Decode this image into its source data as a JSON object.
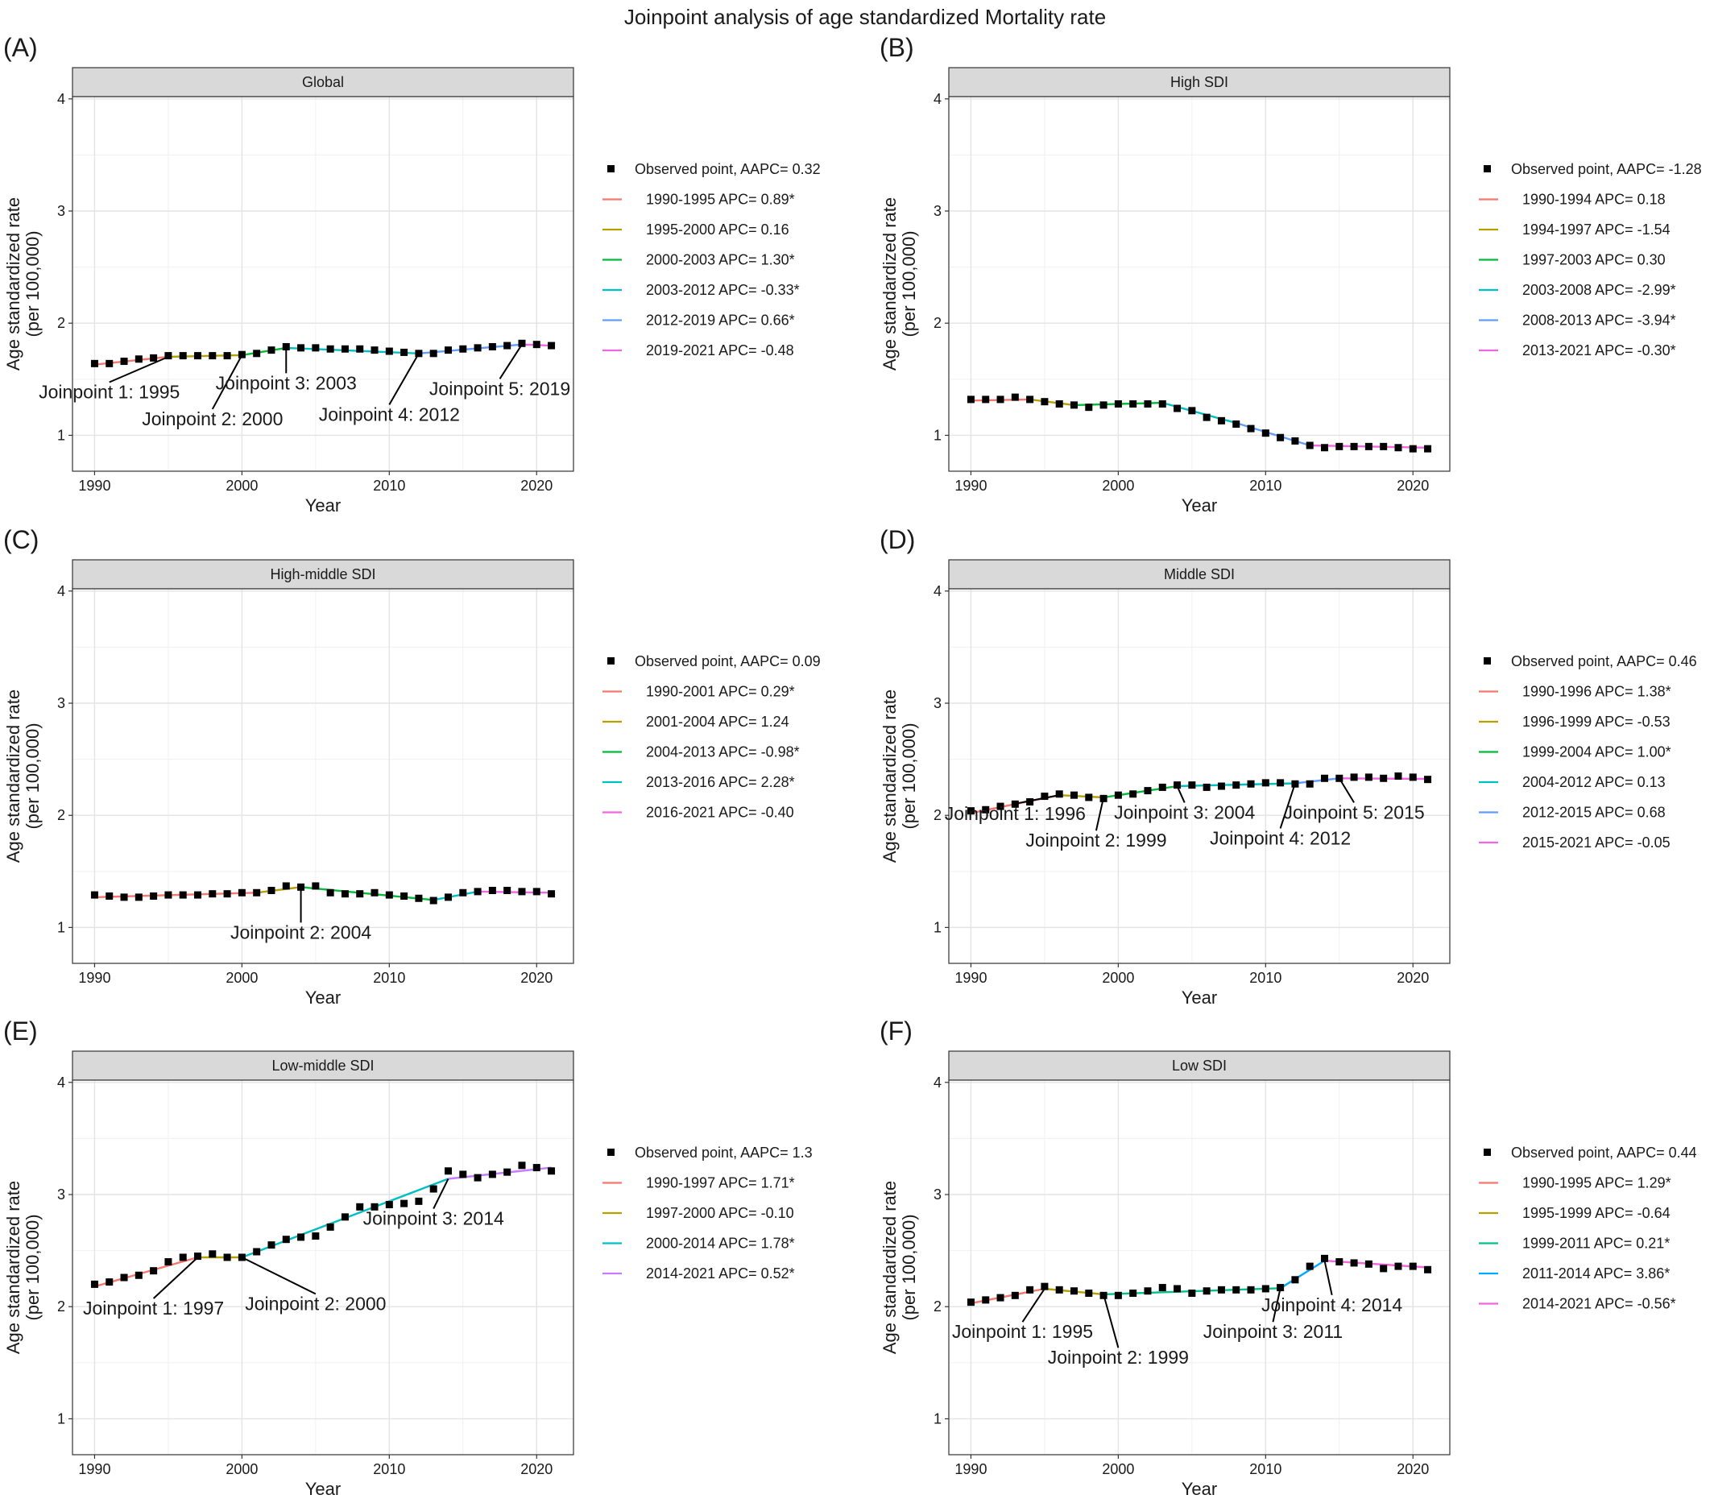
{
  "title": "Joinpoint analysis of age standardized Mortality rate",
  "axes": {
    "xlabel": "Year",
    "ylabel_line1": "Age standardized rate",
    "ylabel_line2": "(per 100,000)",
    "xticks": [
      1990,
      2000,
      2010,
      2020
    ],
    "yticks": [
      1,
      2,
      3,
      4
    ],
    "xlim": [
      1988.5,
      2022.5
    ],
    "ylim": [
      0.68,
      4.02
    ]
  },
  "colors": {
    "segments": [
      "#F8766D",
      "#B79F00",
      "#00BA38",
      "#00BFC4",
      "#619CFF",
      "#F564E3"
    ],
    "observed": "#000000",
    "strip_bg": "#d9d9d9"
  },
  "chart_data": [
    {
      "type": "line",
      "panel_label": "(A)",
      "strip": "Global",
      "observed_legend": "Observed point, AAPC= 0.32",
      "x": [
        1990,
        1991,
        1992,
        1993,
        1994,
        1995,
        1996,
        1997,
        1998,
        1999,
        2000,
        2001,
        2002,
        2003,
        2004,
        2005,
        2006,
        2007,
        2008,
        2009,
        2010,
        2011,
        2012,
        2013,
        2014,
        2015,
        2016,
        2017,
        2018,
        2019,
        2020,
        2021
      ],
      "observed": [
        1.64,
        1.64,
        1.66,
        1.68,
        1.69,
        1.71,
        1.71,
        1.71,
        1.71,
        1.71,
        1.72,
        1.73,
        1.76,
        1.79,
        1.78,
        1.78,
        1.77,
        1.77,
        1.77,
        1.76,
        1.75,
        1.74,
        1.73,
        1.73,
        1.76,
        1.77,
        1.78,
        1.79,
        1.8,
        1.82,
        1.81,
        1.8
      ],
      "segments": [
        {
          "label": "1990-1995 APC= 0.89*",
          "color": "#F8766D",
          "points": [
            [
              1990,
              1.63
            ],
            [
              1995,
              1.7
            ]
          ]
        },
        {
          "label": "1995-2000 APC= 0.16",
          "color": "#B79F00",
          "points": [
            [
              1995,
              1.7
            ],
            [
              2000,
              1.715
            ]
          ]
        },
        {
          "label": "2000-2003 APC= 1.30*",
          "color": "#00BA38",
          "points": [
            [
              2000,
              1.715
            ],
            [
              2003,
              1.78
            ]
          ]
        },
        {
          "label": "2003-2012 APC= -0.33*",
          "color": "#00BFC4",
          "points": [
            [
              2003,
              1.78
            ],
            [
              2012,
              1.73
            ]
          ]
        },
        {
          "label": "2012-2019 APC= 0.66*",
          "color": "#619CFF",
          "points": [
            [
              2012,
              1.73
            ],
            [
              2019,
              1.81
            ]
          ]
        },
        {
          "label": "2019-2021 APC= -0.48",
          "color": "#F564E3",
          "points": [
            [
              2019,
              1.81
            ],
            [
              2021,
              1.8
            ]
          ]
        }
      ],
      "joinpoints": [
        {
          "text": "Joinpoint 1: 1995",
          "x": 1995,
          "y": 1.7,
          "tx": 1991.0,
          "ty": 1.33
        },
        {
          "text": "Joinpoint 2: 2000",
          "x": 2000,
          "y": 1.715,
          "tx": 1998.0,
          "ty": 1.09
        },
        {
          "text": "Joinpoint 3: 2003",
          "x": 2003,
          "y": 1.78,
          "tx": 2003.0,
          "ty": 1.41
        },
        {
          "text": "Joinpoint 4: 2012",
          "x": 2012,
          "y": 1.73,
          "tx": 2010.0,
          "ty": 1.13
        },
        {
          "text": "Joinpoint 5: 2019",
          "x": 2019,
          "y": 1.81,
          "tx": 2017.5,
          "ty": 1.36
        }
      ]
    },
    {
      "type": "line",
      "panel_label": "(B)",
      "strip": "High SDI",
      "observed_legend": "Observed point, AAPC= -1.28",
      "x": [
        1990,
        1991,
        1992,
        1993,
        1994,
        1995,
        1996,
        1997,
        1998,
        1999,
        2000,
        2001,
        2002,
        2003,
        2004,
        2005,
        2006,
        2007,
        2008,
        2009,
        2010,
        2011,
        2012,
        2013,
        2014,
        2015,
        2016,
        2017,
        2018,
        2019,
        2020,
        2021
      ],
      "observed": [
        1.32,
        1.32,
        1.32,
        1.34,
        1.32,
        1.3,
        1.28,
        1.27,
        1.25,
        1.27,
        1.28,
        1.28,
        1.28,
        1.28,
        1.24,
        1.22,
        1.16,
        1.13,
        1.1,
        1.06,
        1.02,
        0.98,
        0.95,
        0.91,
        0.89,
        0.9,
        0.9,
        0.9,
        0.9,
        0.89,
        0.88,
        0.88
      ],
      "segments": [
        {
          "label": "1990-1994 APC= 0.18",
          "color": "#F8766D",
          "points": [
            [
              1990,
              1.31
            ],
            [
              1994,
              1.32
            ]
          ]
        },
        {
          "label": "1994-1997 APC= -1.54",
          "color": "#B79F00",
          "points": [
            [
              1994,
              1.32
            ],
            [
              1997,
              1.27
            ]
          ]
        },
        {
          "label": "1997-2003 APC= 0.30",
          "color": "#00BA38",
          "points": [
            [
              1997,
              1.27
            ],
            [
              2003,
              1.29
            ]
          ]
        },
        {
          "label": "2003-2008 APC= -2.99*",
          "color": "#00BFC4",
          "points": [
            [
              2003,
              1.29
            ],
            [
              2008,
              1.11
            ]
          ]
        },
        {
          "label": "2008-2013 APC= -3.94*",
          "color": "#619CFF",
          "points": [
            [
              2008,
              1.11
            ],
            [
              2013,
              0.91
            ]
          ]
        },
        {
          "label": "2013-2021 APC= -0.30*",
          "color": "#F564E3",
          "points": [
            [
              2013,
              0.91
            ],
            [
              2021,
              0.89
            ]
          ]
        }
      ],
      "joinpoints": []
    },
    {
      "type": "line",
      "panel_label": "(C)",
      "strip": "High-middle SDI",
      "observed_legend": "Observed point, AAPC= 0.09",
      "x": [
        1990,
        1991,
        1992,
        1993,
        1994,
        1995,
        1996,
        1997,
        1998,
        1999,
        2000,
        2001,
        2002,
        2003,
        2004,
        2005,
        2006,
        2007,
        2008,
        2009,
        2010,
        2011,
        2012,
        2013,
        2014,
        2015,
        2016,
        2017,
        2018,
        2019,
        2020,
        2021
      ],
      "observed": [
        1.29,
        1.28,
        1.27,
        1.27,
        1.28,
        1.29,
        1.29,
        1.29,
        1.3,
        1.3,
        1.31,
        1.31,
        1.33,
        1.37,
        1.36,
        1.37,
        1.31,
        1.3,
        1.3,
        1.31,
        1.29,
        1.28,
        1.26,
        1.24,
        1.27,
        1.31,
        1.32,
        1.33,
        1.33,
        1.32,
        1.32,
        1.3
      ],
      "segments": [
        {
          "label": "1990-2001 APC= 0.29*",
          "color": "#F8766D",
          "points": [
            [
              1990,
              1.27
            ],
            [
              2001,
              1.31
            ]
          ]
        },
        {
          "label": "2001-2004 APC= 1.24",
          "color": "#B79F00",
          "points": [
            [
              2001,
              1.31
            ],
            [
              2004,
              1.36
            ]
          ]
        },
        {
          "label": "2004-2013 APC= -0.98*",
          "color": "#00BA38",
          "points": [
            [
              2004,
              1.36
            ],
            [
              2013,
              1.245
            ]
          ]
        },
        {
          "label": "2013-2016 APC= 2.28*",
          "color": "#00BFC4",
          "points": [
            [
              2013,
              1.245
            ],
            [
              2016,
              1.32
            ]
          ]
        },
        {
          "label": "2016-2021 APC= -0.40",
          "color": "#F564E3",
          "points": [
            [
              2016,
              1.32
            ],
            [
              2021,
              1.31
            ]
          ]
        }
      ],
      "joinpoints": [
        {
          "text": "Joinpoint 2: 2004",
          "x": 2004,
          "y": 1.36,
          "tx": 2004.0,
          "ty": 0.9
        }
      ]
    },
    {
      "type": "line",
      "panel_label": "(D)",
      "strip": "Middle SDI",
      "observed_legend": "Observed point, AAPC= 0.46",
      "x": [
        1990,
        1991,
        1992,
        1993,
        1994,
        1995,
        1996,
        1997,
        1998,
        1999,
        2000,
        2001,
        2002,
        2003,
        2004,
        2005,
        2006,
        2007,
        2008,
        2009,
        2010,
        2011,
        2012,
        2013,
        2014,
        2015,
        2016,
        2017,
        2018,
        2019,
        2020,
        2021
      ],
      "observed": [
        2.04,
        2.05,
        2.08,
        2.1,
        2.12,
        2.17,
        2.19,
        2.18,
        2.16,
        2.15,
        2.18,
        2.19,
        2.22,
        2.25,
        2.27,
        2.27,
        2.25,
        2.26,
        2.27,
        2.28,
        2.29,
        2.29,
        2.28,
        2.28,
        2.33,
        2.33,
        2.34,
        2.34,
        2.33,
        2.35,
        2.34,
        2.32
      ],
      "segments": [
        {
          "label": "1990-1996 APC= 1.38*",
          "color": "#F8766D",
          "points": [
            [
              1990,
              2.02
            ],
            [
              1996,
              2.18
            ]
          ]
        },
        {
          "label": "1996-1999 APC= -0.53",
          "color": "#B79F00",
          "points": [
            [
              1996,
              2.18
            ],
            [
              1999,
              2.16
            ]
          ]
        },
        {
          "label": "1999-2004 APC= 1.00*",
          "color": "#00BA38",
          "points": [
            [
              1999,
              2.16
            ],
            [
              2004,
              2.26
            ]
          ]
        },
        {
          "label": "2004-2012 APC= 0.13",
          "color": "#00BFC4",
          "points": [
            [
              2004,
              2.26
            ],
            [
              2012,
              2.285
            ]
          ]
        },
        {
          "label": "2012-2015 APC= 0.68",
          "color": "#619CFF",
          "points": [
            [
              2012,
              2.285
            ],
            [
              2015,
              2.33
            ]
          ]
        },
        {
          "label": "2015-2021 APC= -0.05",
          "color": "#F564E3",
          "points": [
            [
              2015,
              2.33
            ],
            [
              2021,
              2.325
            ]
          ]
        }
      ],
      "joinpoints": [
        {
          "text": "Joinpoint 1: 1996",
          "x": 1996,
          "y": 2.18,
          "tx": 1993.0,
          "ty": 1.96
        },
        {
          "text": "Joinpoint 2: 1999",
          "x": 1999,
          "y": 2.16,
          "tx": 1998.5,
          "ty": 1.72
        },
        {
          "text": "Joinpoint 3: 2004",
          "x": 2004,
          "y": 2.26,
          "tx": 2004.5,
          "ty": 1.97
        },
        {
          "text": "Joinpoint 4: 2012",
          "x": 2012,
          "y": 2.285,
          "tx": 2011.0,
          "ty": 1.74
        },
        {
          "text": "Joinpoint 5: 2015",
          "x": 2015,
          "y": 2.33,
          "tx": 2016.0,
          "ty": 1.97
        }
      ]
    },
    {
      "type": "line",
      "panel_label": "(E)",
      "strip": "Low-middle SDI",
      "observed_legend": "Observed point, AAPC= 1.3",
      "x": [
        1990,
        1991,
        1992,
        1993,
        1994,
        1995,
        1996,
        1997,
        1998,
        1999,
        2000,
        2001,
        2002,
        2003,
        2004,
        2005,
        2006,
        2007,
        2008,
        2009,
        2010,
        2011,
        2012,
        2013,
        2014,
        2015,
        2016,
        2017,
        2018,
        2019,
        2020,
        2021
      ],
      "observed": [
        2.2,
        2.22,
        2.26,
        2.28,
        2.32,
        2.4,
        2.44,
        2.45,
        2.47,
        2.44,
        2.44,
        2.49,
        2.55,
        2.6,
        2.62,
        2.63,
        2.71,
        2.8,
        2.89,
        2.89,
        2.91,
        2.92,
        2.94,
        3.05,
        3.21,
        3.18,
        3.15,
        3.18,
        3.2,
        3.26,
        3.24,
        3.21
      ],
      "segments": [
        {
          "label": "1990-1997 APC= 1.71*",
          "color": "#F8766D",
          "points": [
            [
              1990,
              2.18
            ],
            [
              1997,
              2.44
            ]
          ]
        },
        {
          "label": "1997-2000 APC= -0.10",
          "color": "#B79F00",
          "points": [
            [
              1997,
              2.44
            ],
            [
              2000,
              2.44
            ]
          ]
        },
        {
          "label": "2000-2014 APC= 1.78*",
          "color": "#00BFC4",
          "points": [
            [
              2000,
              2.44
            ],
            [
              2014,
              3.14
            ]
          ]
        },
        {
          "label": "2014-2021 APC= 0.52*",
          "color": "#C77CFF",
          "points": [
            [
              2014,
              3.14
            ],
            [
              2021,
              3.24
            ]
          ]
        }
      ],
      "joinpoints": [
        {
          "text": "Joinpoint 1: 1997",
          "x": 1997,
          "y": 2.44,
          "tx": 1994.0,
          "ty": 1.93
        },
        {
          "text": "Joinpoint 2: 2000",
          "x": 2000,
          "y": 2.44,
          "tx": 2005.0,
          "ty": 1.97
        },
        {
          "text": "Joinpoint 3: 2014",
          "x": 2014,
          "y": 3.14,
          "tx": 2013.0,
          "ty": 2.73
        }
      ]
    },
    {
      "type": "line",
      "panel_label": "(F)",
      "strip": "Low SDI",
      "observed_legend": "Observed point, AAPC= 0.44",
      "x": [
        1990,
        1991,
        1992,
        1993,
        1994,
        1995,
        1996,
        1997,
        1998,
        1999,
        2000,
        2001,
        2002,
        2003,
        2004,
        2005,
        2006,
        2007,
        2008,
        2009,
        2010,
        2011,
        2012,
        2013,
        2014,
        2015,
        2016,
        2017,
        2018,
        2019,
        2020,
        2021
      ],
      "observed": [
        2.04,
        2.06,
        2.08,
        2.1,
        2.15,
        2.18,
        2.15,
        2.14,
        2.12,
        2.1,
        2.1,
        2.12,
        2.14,
        2.17,
        2.16,
        2.12,
        2.14,
        2.15,
        2.15,
        2.15,
        2.16,
        2.17,
        2.24,
        2.36,
        2.43,
        2.4,
        2.39,
        2.38,
        2.34,
        2.36,
        2.36,
        2.33
      ],
      "segments": [
        {
          "label": "1990-1995 APC= 1.29*",
          "color": "#F8766D",
          "points": [
            [
              1990,
              2.03
            ],
            [
              1995,
              2.16
            ]
          ]
        },
        {
          "label": "1995-1999 APC= -0.64",
          "color": "#B79F00",
          "points": [
            [
              1995,
              2.16
            ],
            [
              1999,
              2.11
            ]
          ]
        },
        {
          "label": "1999-2011 APC= 0.21*",
          "color": "#00C08B",
          "points": [
            [
              1999,
              2.11
            ],
            [
              2011,
              2.165
            ]
          ]
        },
        {
          "label": "2011-2014 APC= 3.86*",
          "color": "#00A9FF",
          "points": [
            [
              2011,
              2.165
            ],
            [
              2014,
              2.41
            ]
          ]
        },
        {
          "label": "2014-2021 APC= -0.56*",
          "color": "#F564E3",
          "points": [
            [
              2014,
              2.41
            ],
            [
              2021,
              2.35
            ]
          ]
        }
      ],
      "joinpoints": [
        {
          "text": "Joinpoint 1: 1995",
          "x": 1995,
          "y": 2.16,
          "tx": 1993.5,
          "ty": 1.72
        },
        {
          "text": "Joinpoint 2: 1999",
          "x": 1999,
          "y": 2.11,
          "tx": 2000.0,
          "ty": 1.49
        },
        {
          "text": "Joinpoint 3: 2011",
          "x": 2011,
          "y": 2.165,
          "tx": 2010.5,
          "ty": 1.72
        },
        {
          "text": "Joinpoint 4: 2014",
          "x": 2014,
          "y": 2.41,
          "tx": 2014.5,
          "ty": 1.96
        }
      ]
    }
  ]
}
